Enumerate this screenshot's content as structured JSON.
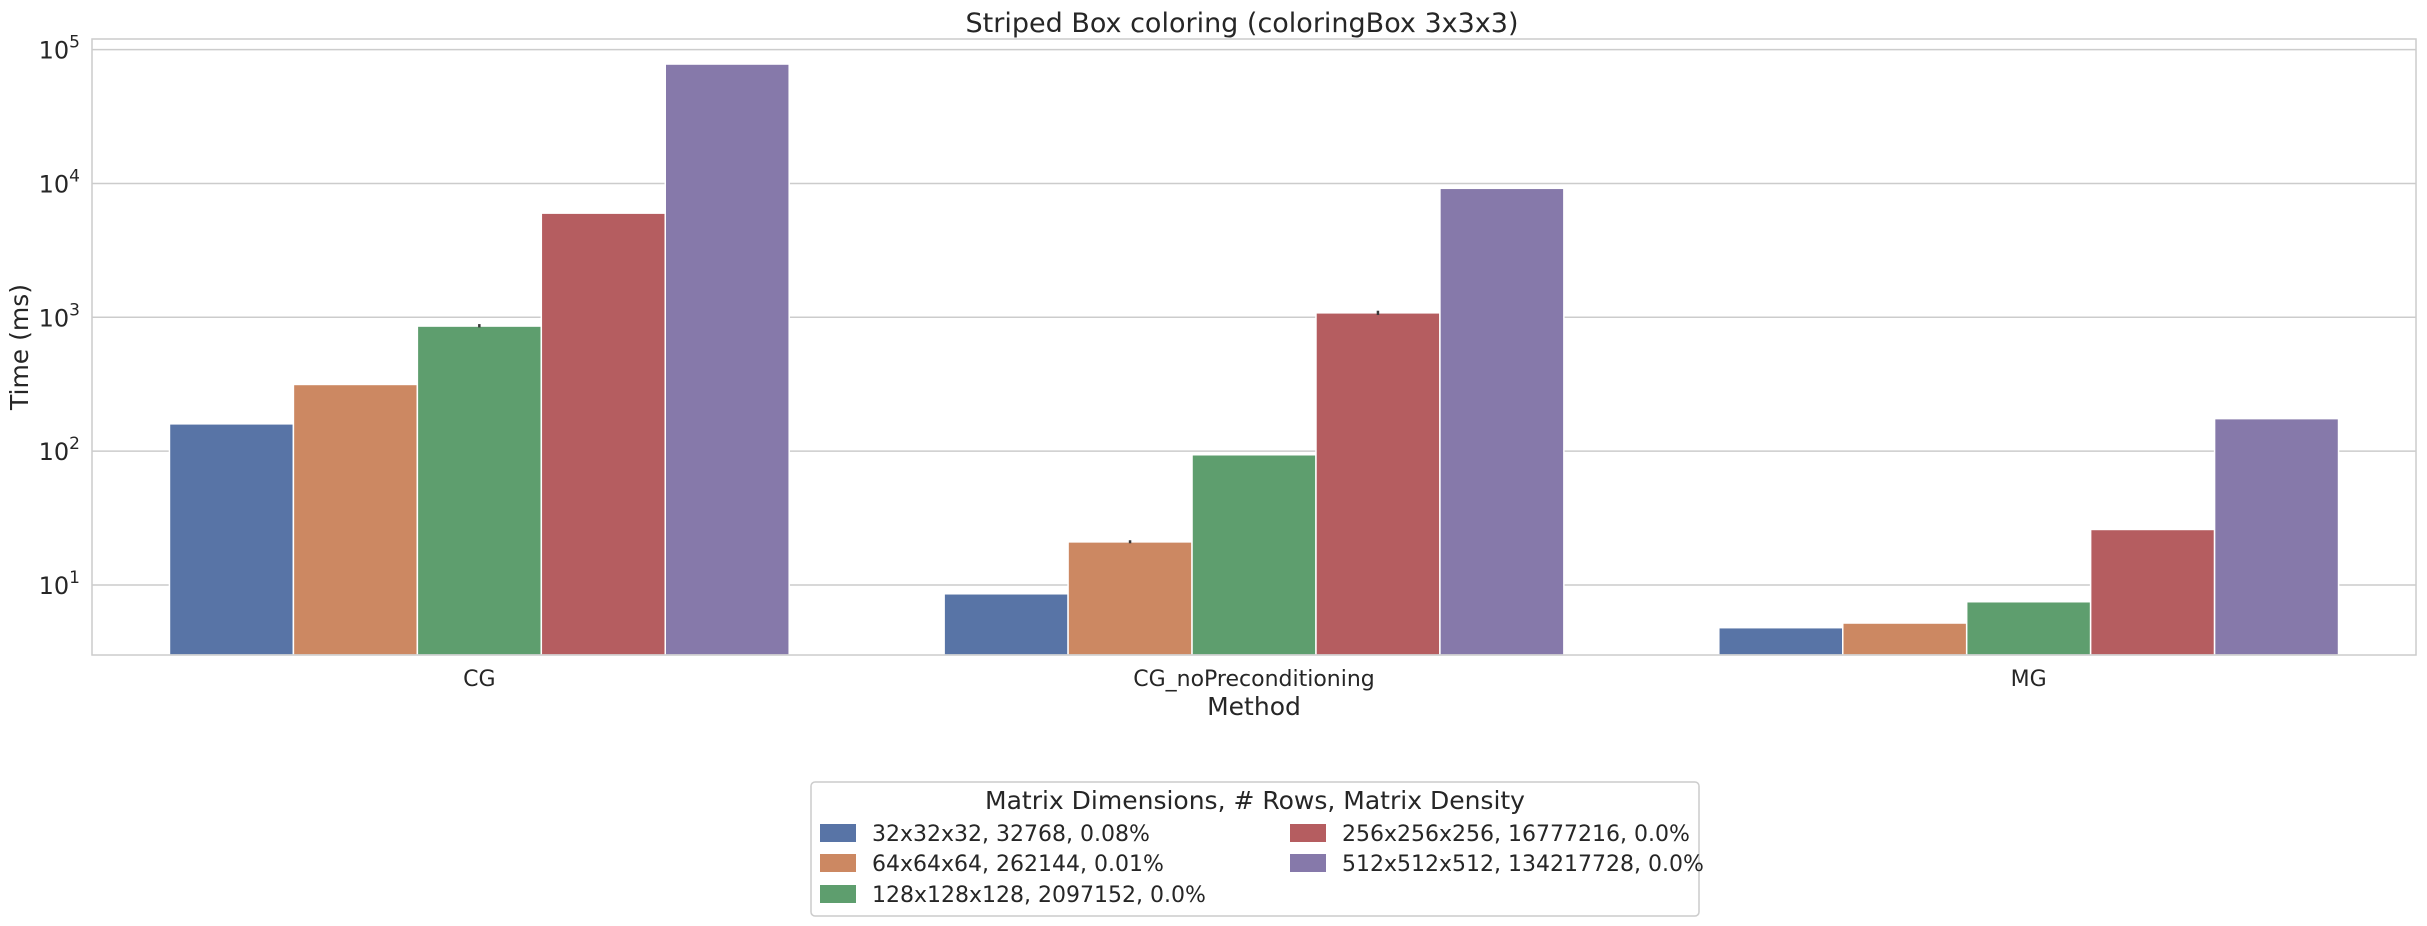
{
  "chart_data": {
    "type": "bar",
    "title": "Striped Box coloring (coloringBox 3x3x3)",
    "xlabel": "Method",
    "ylabel": "Time (ms)",
    "y_scale": "log",
    "ylim": [
      3.0,
      120000
    ],
    "categories": [
      "CG",
      "CG_noPreconditioning",
      "MG"
    ],
    "y_ticks": [
      {
        "value": 10,
        "base": "10",
        "exponent": "1"
      },
      {
        "value": 100,
        "base": "10",
        "exponent": "2"
      },
      {
        "value": 1000,
        "base": "10",
        "exponent": "3"
      },
      {
        "value": 10000,
        "base": "10",
        "exponent": "4"
      },
      {
        "value": 100000,
        "base": "10",
        "exponent": "5"
      }
    ],
    "grid": true,
    "series": [
      {
        "name": "32x32x32, 32768, 0.08%",
        "color": "#5874a6",
        "values": [
          160,
          8.6,
          4.8
        ]
      },
      {
        "name": "64x64x64, 262144, 0.01%",
        "color": "#cc8862",
        "values": [
          315,
          21,
          5.2
        ]
      },
      {
        "name": "128x128x128, 2097152, 0.0%",
        "color": "#5e9e6e",
        "values": [
          860,
          94,
          7.5
        ]
      },
      {
        "name": "256x256x256, 16777216, 0.0%",
        "color": "#b55d60",
        "values": [
          6000,
          1080,
          26
        ]
      },
      {
        "name": "512x512x512, 134217728, 0.0%",
        "color": "#8679aa",
        "values": [
          78000,
          9200,
          175
        ]
      }
    ],
    "error_bars": [
      {
        "series": 2,
        "category": 0,
        "low": 840,
        "high": 890
      },
      {
        "series": 1,
        "category": 1,
        "low": 20.5,
        "high": 21.6
      },
      {
        "series": 3,
        "category": 1,
        "low": 1040,
        "high": 1120
      }
    ],
    "legend": {
      "title": "Matrix Dimensions, # Rows, Matrix Density",
      "placement": "bottom-center",
      "columns": 2
    }
  }
}
